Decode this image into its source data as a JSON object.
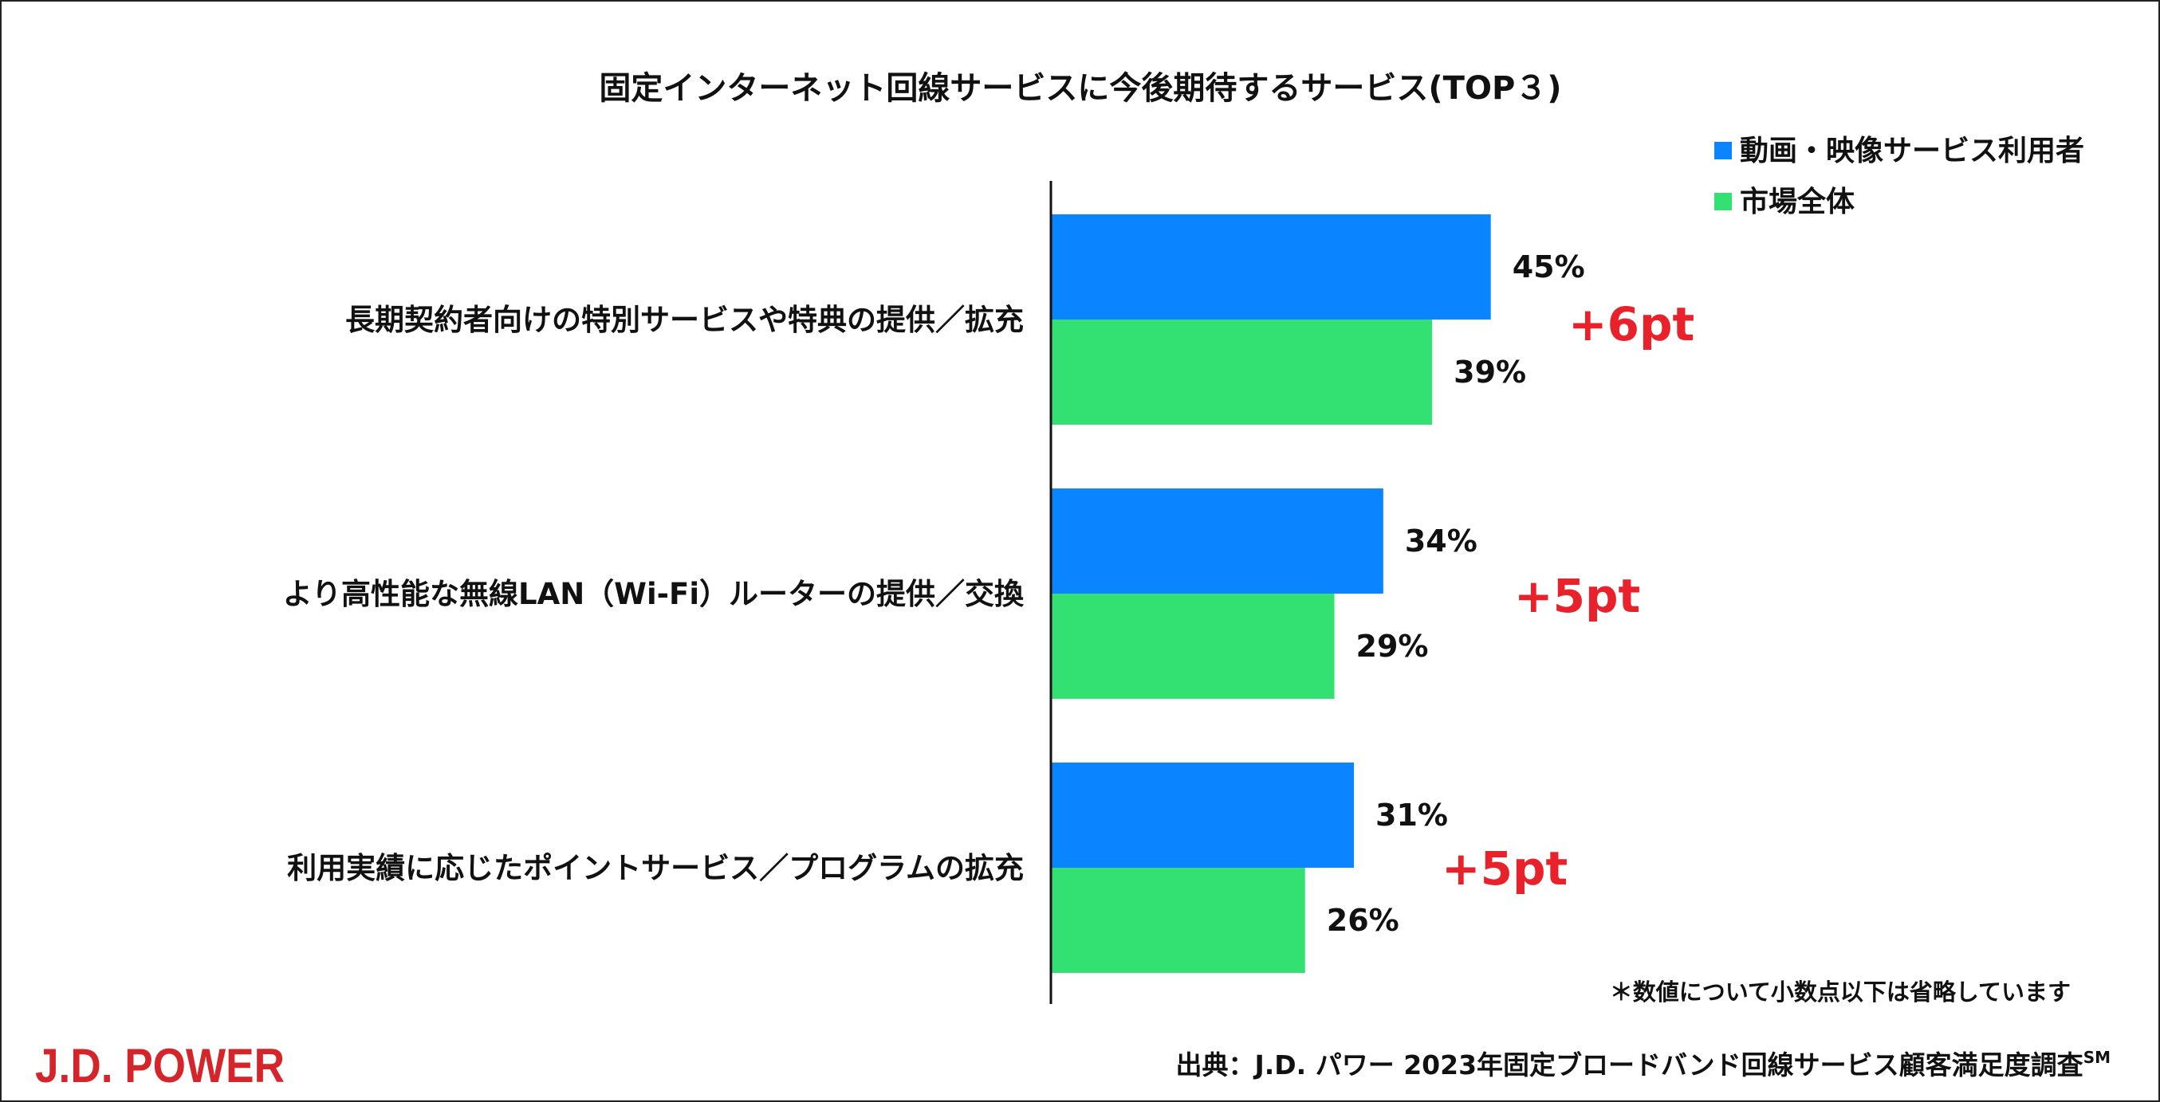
{
  "chart_data": {
    "type": "bar",
    "orientation": "horizontal",
    "title": "固定インターネット回線サービスに今後期待するサービス(TOP３)",
    "categories": [
      "長期契約者向けの特別サービスや特典の提供／拡充",
      "より高性能な無線LAN（Wi-Fi）ルーターの提供／交換",
      "利用実績に応じたポイントサービス／プログラムの拡充"
    ],
    "series": [
      {
        "name": "動画・映像サービス利用者",
        "color": "#0a84ff",
        "values": [
          45,
          34,
          31
        ],
        "labels": [
          "45%",
          "34%",
          "31%"
        ]
      },
      {
        "name": "市場全体",
        "color": "#33e173",
        "values": [
          39,
          29,
          26
        ],
        "labels": [
          "39%",
          "29%",
          "26%"
        ]
      }
    ],
    "differences": [
      "+6pt",
      "+5pt",
      "+5pt"
    ],
    "xlim": [
      0,
      100
    ],
    "grid": false,
    "legend_position": "top-right",
    "footnote": "＊数値について小数点以下は省略しています"
  },
  "source": {
    "text": "出典：J.D. パワー 2023年固定ブロードバンド回線サービス顧客満足度調査",
    "superscript": "SM"
  },
  "logo": {
    "text": "J.D. POWER"
  },
  "colors": {
    "diff": "#e8212b",
    "logo": "#d4252b"
  }
}
